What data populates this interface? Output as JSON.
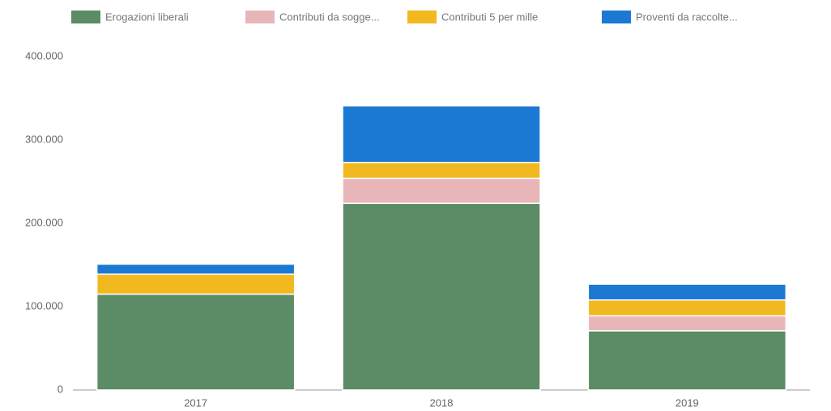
{
  "chart_data": {
    "type": "stacked_bar",
    "categories": [
      "2017",
      "2018",
      "2019"
    ],
    "series": [
      {
        "name": "Erogazioni liberali",
        "color": "#5b8c65",
        "values": [
          115000,
          224000,
          71000
        ]
      },
      {
        "name": "Contributi da sogge...",
        "color": "#e8b6b9",
        "values": [
          0,
          30000,
          18000
        ]
      },
      {
        "name": "Contributi 5 per mille",
        "color": "#f2b81f",
        "values": [
          24000,
          19000,
          19000
        ]
      },
      {
        "name": "Proventi da raccolte...",
        "color": "#1b79d3",
        "values": [
          12000,
          68000,
          19000
        ]
      }
    ],
    "ylim": [
      0,
      400000
    ],
    "yticks": [
      0,
      {
        "value": 100000,
        "label": "100.000"
      },
      {
        "value": 200000,
        "label": "200.000"
      },
      {
        "value": 300000,
        "label": "300.000"
      },
      {
        "value": 400000,
        "label": "400.000"
      }
    ],
    "legend": "top"
  }
}
